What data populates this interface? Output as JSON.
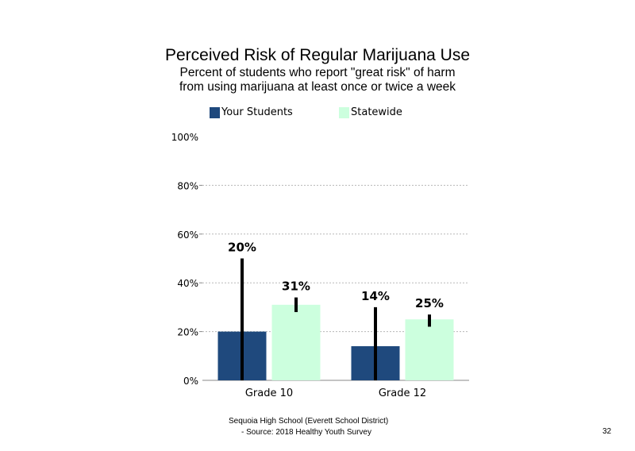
{
  "chart_data": {
    "type": "bar",
    "title": "Perceived Risk of Regular Marijuana Use",
    "subtitle_line1": "Percent of students  who report \"great risk\" of harm",
    "subtitle_line2": "from using marijuana at least once or twice a week",
    "categories": [
      "Grade 10",
      "Grade 12"
    ],
    "series": [
      {
        "name": "Your Students",
        "values": [
          20,
          14
        ],
        "labels": [
          "20%",
          "14%"
        ],
        "ci_low": [
          0,
          0
        ],
        "ci_high": [
          50,
          30
        ],
        "color": "#1f497d"
      },
      {
        "name": "Statewide",
        "values": [
          31,
          25
        ],
        "labels": [
          "31%",
          "25%"
        ],
        "ci_low": [
          28,
          22
        ],
        "ci_high": [
          34,
          27
        ],
        "color": "#ccffde"
      }
    ],
    "ylim": [
      0,
      100
    ],
    "yticks": [
      "0%",
      "20%",
      "40%",
      "60%",
      "80%",
      "100%"
    ],
    "grid": true,
    "legend_position": "top",
    "xlabel": "",
    "ylabel": ""
  },
  "footer": {
    "line1": "Sequoia High School (Everett School District)",
    "line2": "- Source: 2018 Healthy  Youth Survey"
  },
  "page_number": "32"
}
